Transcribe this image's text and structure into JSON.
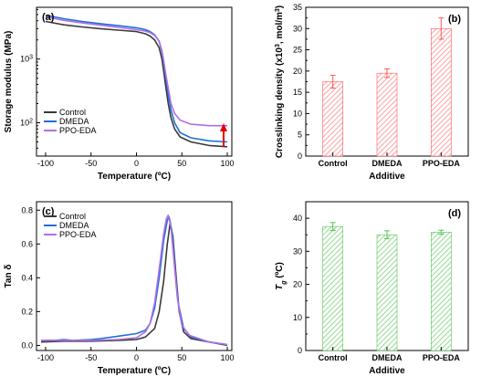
{
  "colors": {
    "control": "#3a3a3a",
    "dmeda": "#1f6fd6",
    "ppoeda": "#b06ee6",
    "red": "#ff5a5a",
    "green": "#55c255",
    "arrow": "#e60000"
  },
  "chart_data": [
    {
      "id": "a",
      "panel_label": "(a)",
      "type": "line",
      "xlabel": "Temperature (ºC)",
      "ylabel": "Storage modulus (MPa)",
      "xlim": [
        -110,
        105
      ],
      "xticks": [
        -100,
        -50,
        0,
        50,
        100
      ],
      "ylim": [
        30,
        6500
      ],
      "yscale": "log",
      "yticks": [
        {
          "v": 100,
          "l": "10",
          "e": "2"
        },
        {
          "v": 1000,
          "l": "10",
          "e": "3"
        }
      ],
      "legend_position": "bottom-left",
      "annotation": "red upward arrow at right end near PPO-EDA curve",
      "series": [
        {
          "name": "Control",
          "color_key": "control",
          "points": [
            [
              -100,
              3900
            ],
            [
              -80,
              3450
            ],
            [
              -60,
              3200
            ],
            [
              -40,
              3000
            ],
            [
              -20,
              2850
            ],
            [
              0,
              2700
            ],
            [
              10,
              2500
            ],
            [
              15,
              2300
            ],
            [
              20,
              2000
            ],
            [
              25,
              1500
            ],
            [
              28,
              1000
            ],
            [
              30,
              650
            ],
            [
              32,
              400
            ],
            [
              35,
              200
            ],
            [
              38,
              120
            ],
            [
              42,
              80
            ],
            [
              48,
              60
            ],
            [
              60,
              50
            ],
            [
              80,
              44
            ],
            [
              100,
              42
            ]
          ]
        },
        {
          "name": "DMEDA",
          "color_key": "dmeda",
          "points": [
            [
              -100,
              4900
            ],
            [
              -80,
              4300
            ],
            [
              -60,
              3900
            ],
            [
              -40,
              3600
            ],
            [
              -20,
              3350
            ],
            [
              0,
              3100
            ],
            [
              10,
              2900
            ],
            [
              15,
              2700
            ],
            [
              20,
              2400
            ],
            [
              25,
              1900
            ],
            [
              28,
              1300
            ],
            [
              30,
              900
            ],
            [
              32,
              550
            ],
            [
              35,
              280
            ],
            [
              38,
              160
            ],
            [
              42,
              100
            ],
            [
              48,
              70
            ],
            [
              60,
              58
            ],
            [
              80,
              52
            ],
            [
              100,
              50
            ]
          ]
        },
        {
          "name": "PPO-EDA",
          "color_key": "ppoeda",
          "points": [
            [
              -100,
              4600
            ],
            [
              -80,
              4050
            ],
            [
              -60,
              3700
            ],
            [
              -40,
              3400
            ],
            [
              -20,
              3150
            ],
            [
              0,
              2900
            ],
            [
              10,
              2750
            ],
            [
              15,
              2600
            ],
            [
              20,
              2350
            ],
            [
              25,
              1900
            ],
            [
              28,
              1350
            ],
            [
              30,
              950
            ],
            [
              32,
              620
            ],
            [
              35,
              350
            ],
            [
              38,
              200
            ],
            [
              42,
              140
            ],
            [
              48,
              110
            ],
            [
              60,
              95
            ],
            [
              80,
              90
            ],
            [
              100,
              90
            ]
          ]
        }
      ]
    },
    {
      "id": "b",
      "panel_label": "(b)",
      "type": "bar",
      "xlabel": "Additive",
      "ylabel_parts": [
        "Crosslinking density (x10",
        "3",
        ", mol/m",
        "3",
        ")"
      ],
      "categories": [
        "Control",
        "DMEDA",
        "PPO-EDA"
      ],
      "values": [
        17.5,
        19.5,
        30.0
      ],
      "errors": [
        1.5,
        1.0,
        2.5
      ],
      "ylim": [
        0,
        35
      ],
      "yticks": [
        0,
        5,
        10,
        15,
        20,
        25,
        30,
        35
      ],
      "color_key": "red"
    },
    {
      "id": "c",
      "panel_label": "(c)",
      "type": "line",
      "xlabel": "Temperature (ºC)",
      "ylabel": "Tan δ",
      "xlim": [
        -110,
        105
      ],
      "xticks": [
        -100,
        -50,
        0,
        50,
        100
      ],
      "ylim": [
        -0.03,
        0.85
      ],
      "yticks": [
        0.0,
        0.2,
        0.4,
        0.6,
        0.8
      ],
      "legend_position": "top-left",
      "series": [
        {
          "name": "Control",
          "color_key": "control",
          "points": [
            [
              -105,
              0.02
            ],
            [
              -80,
              0.025
            ],
            [
              -50,
              0.025
            ],
            [
              -20,
              0.03
            ],
            [
              0,
              0.035
            ],
            [
              10,
              0.05
            ],
            [
              20,
              0.1
            ],
            [
              25,
              0.2
            ],
            [
              30,
              0.38
            ],
            [
              34,
              0.6
            ],
            [
              37,
              0.72
            ],
            [
              40,
              0.65
            ],
            [
              43,
              0.45
            ],
            [
              47,
              0.2
            ],
            [
              52,
              0.08
            ],
            [
              60,
              0.04
            ],
            [
              80,
              0.02
            ],
            [
              100,
              0.0
            ]
          ]
        },
        {
          "name": "DMEDA",
          "color_key": "dmeda",
          "points": [
            [
              -105,
              0.03
            ],
            [
              -90,
              0.03
            ],
            [
              -80,
              0.035
            ],
            [
              -70,
              0.03
            ],
            [
              -50,
              0.035
            ],
            [
              -40,
              0.04
            ],
            [
              -20,
              0.055
            ],
            [
              0,
              0.07
            ],
            [
              10,
              0.09
            ],
            [
              15,
              0.13
            ],
            [
              20,
              0.22
            ],
            [
              25,
              0.4
            ],
            [
              30,
              0.62
            ],
            [
              34,
              0.74
            ],
            [
              36,
              0.76
            ],
            [
              39,
              0.68
            ],
            [
              42,
              0.48
            ],
            [
              46,
              0.25
            ],
            [
              52,
              0.1
            ],
            [
              60,
              0.05
            ],
            [
              80,
              0.02
            ],
            [
              100,
              0.005
            ]
          ]
        },
        {
          "name": "PPO-EDA",
          "color_key": "ppoeda",
          "points": [
            [
              -105,
              0.03
            ],
            [
              -80,
              0.03
            ],
            [
              -50,
              0.03
            ],
            [
              -20,
              0.035
            ],
            [
              0,
              0.045
            ],
            [
              10,
              0.08
            ],
            [
              15,
              0.13
            ],
            [
              20,
              0.25
            ],
            [
              25,
              0.45
            ],
            [
              30,
              0.66
            ],
            [
              33,
              0.75
            ],
            [
              35,
              0.77
            ],
            [
              38,
              0.7
            ],
            [
              41,
              0.52
            ],
            [
              45,
              0.28
            ],
            [
              50,
              0.12
            ],
            [
              58,
              0.06
            ],
            [
              80,
              0.02
            ],
            [
              100,
              0.005
            ]
          ]
        }
      ]
    },
    {
      "id": "d",
      "panel_label": "(d)",
      "type": "bar",
      "xlabel": "Additive",
      "ylabel_parts": [
        "T",
        "g",
        " (ºC)"
      ],
      "categories": [
        "Control",
        "DMEDA",
        "PPO-EDA"
      ],
      "values": [
        37.5,
        35.0,
        35.8
      ],
      "errors": [
        1.2,
        1.2,
        0.6
      ],
      "ylim": [
        0,
        45
      ],
      "yticks": [
        0,
        10,
        20,
        30,
        40
      ],
      "color_key": "green"
    }
  ]
}
